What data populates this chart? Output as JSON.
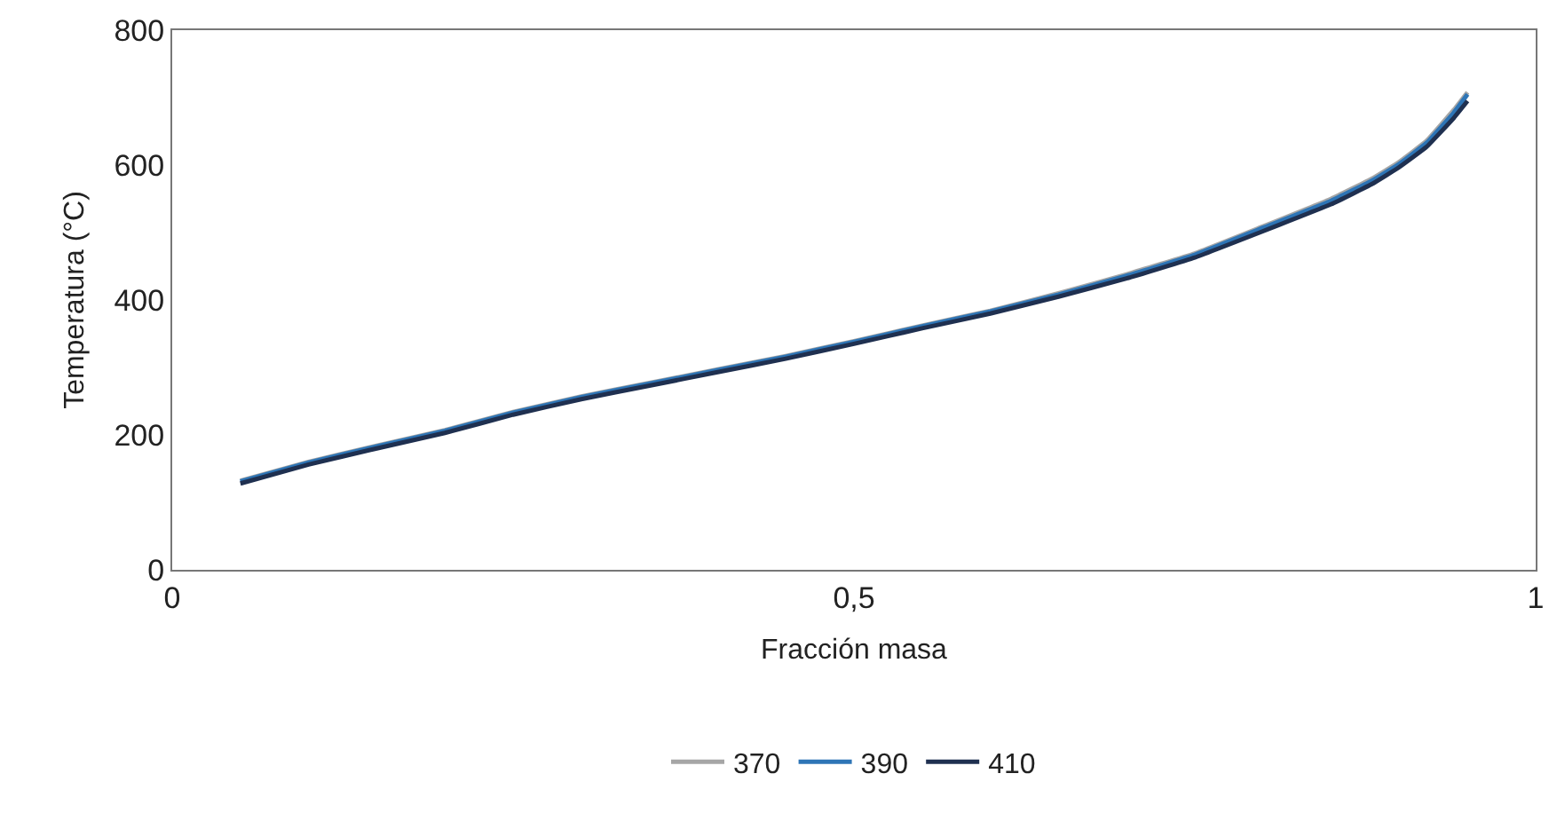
{
  "chart_data": {
    "type": "line",
    "xlabel": "Fracción masa",
    "ylabel": "Temperatura (°C)",
    "x": [
      0.05,
      0.1,
      0.15,
      0.2,
      0.25,
      0.3,
      0.35,
      0.4,
      0.45,
      0.5,
      0.55,
      0.6,
      0.65,
      0.7,
      0.75,
      0.8,
      0.85,
      0.88,
      0.9,
      0.92,
      0.94,
      0.95
    ],
    "series": [
      {
        "name": "370",
        "color": "#a6a6a6",
        "values": [
          132,
          160,
          184,
          207,
          234,
          257,
          277,
          297,
          317,
          339,
          362,
          384,
          410,
          438,
          469,
          509,
          550,
          580,
          605,
          636,
          682,
          708
        ]
      },
      {
        "name": "390",
        "color": "#2e75b6",
        "values": [
          131,
          159,
          183,
          206,
          233,
          256,
          276,
          296,
          316,
          338,
          361,
          383,
          408,
          436,
          467,
          507,
          547,
          577,
          602,
          633,
          678,
          705
        ]
      },
      {
        "name": "410",
        "color": "#1f3050",
        "values": [
          128,
          156,
          180,
          203,
          230,
          253,
          273,
          293,
          313,
          335,
          358,
          380,
          405,
          432,
          463,
          502,
          542,
          572,
          597,
          627,
          670,
          695
        ]
      }
    ],
    "xlim": [
      0,
      1
    ],
    "xticks": [
      0,
      {
        "value": 0.5,
        "label": "0,5"
      },
      1
    ],
    "ylim": [
      0,
      800
    ],
    "yticks": [
      0,
      200,
      400,
      600,
      800
    ],
    "grid": false,
    "legend": "bottom",
    "marker": "none",
    "line_style": "solid"
  }
}
